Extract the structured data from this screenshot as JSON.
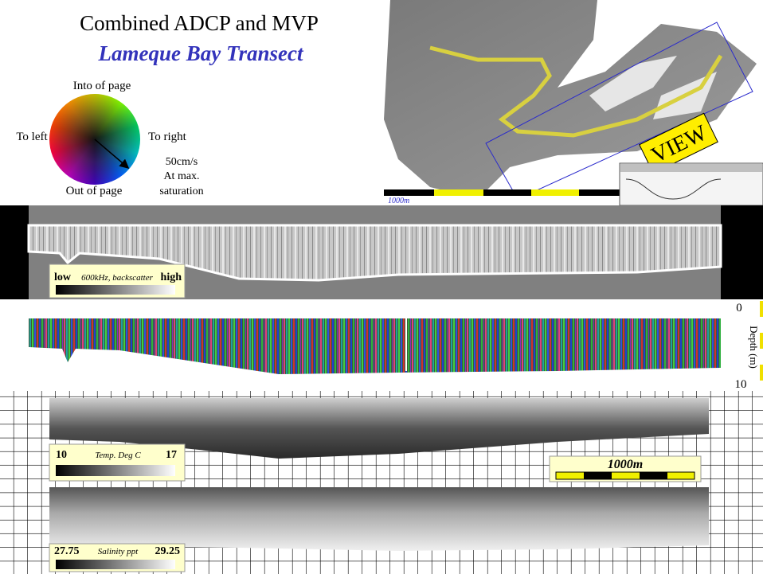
{
  "header": {
    "title": "Combined ADCP and MVP",
    "subtitle": "Lameque Bay Transect"
  },
  "color_wheel": {
    "top": "Into of page",
    "left": "To left",
    "right": "To right",
    "bottom": "Out of page",
    "note": [
      "50cm/s",
      "At max.",
      "saturation"
    ]
  },
  "map": {
    "scale_label": "1000m",
    "sign": "VIEW"
  },
  "backscatter": {
    "legend": {
      "low": "low",
      "label": "600kHz, backscatter",
      "high": "high"
    }
  },
  "velocity": {
    "depth_axis": {
      "top": "0",
      "label": "Depth (m)",
      "bottom": "10"
    }
  },
  "temperature": {
    "legend": {
      "low": "10",
      "label": "Temp. Deg C",
      "high": "17"
    }
  },
  "scale_bar": {
    "label": "1000m"
  },
  "salinity": {
    "legend": {
      "low": "27.75",
      "label": "Salinity ppt",
      "high": "29.25"
    }
  }
}
